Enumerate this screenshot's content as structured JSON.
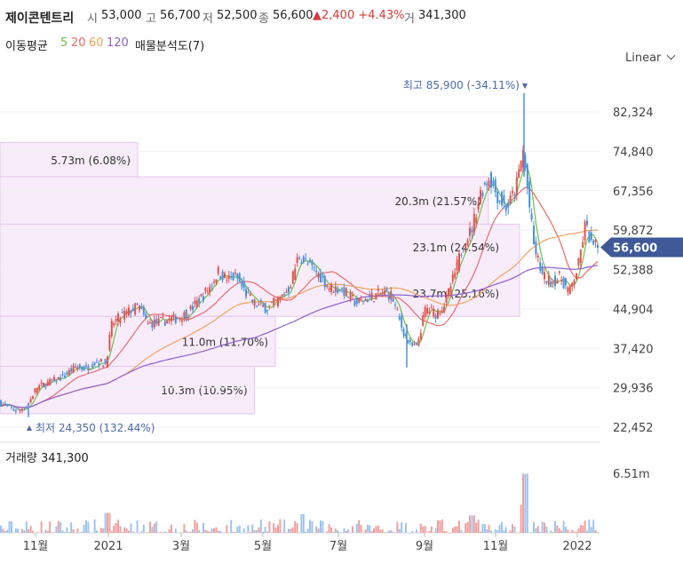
{
  "header": {
    "name": "제이콘텐트리",
    "open_label": "시",
    "open": "53,000",
    "high_label": "고",
    "high": "56,700",
    "low_label": "저",
    "low": "52,500",
    "close_label": "종",
    "close": "56,600",
    "change": "▲2,400 +4.43%",
    "volume_label": "거",
    "volume": "341,300"
  },
  "ma_legend": {
    "title": "이동평균",
    "p5": "5",
    "p20": "20",
    "p60": "60",
    "p120": "120",
    "vp": "매물분석도(7)"
  },
  "scale_select": {
    "label": "Linear"
  },
  "colors": {
    "up": "#e0534f",
    "down": "#4a90d9",
    "ma5": "#6cc04a",
    "ma20": "#e86b6b",
    "ma60": "#f0a35e",
    "ma120": "#8e5fd0",
    "vp": "#f3dcf8",
    "price_tag": "#3f5999"
  },
  "chart_data": {
    "type": "candlestick",
    "yticks": [
      "82,324",
      "74,840",
      "67,356",
      "59,872",
      "52,388",
      "44,904",
      "37,420",
      "29,936",
      "22,452"
    ],
    "ylim": [
      22452,
      86000
    ],
    "xticks": [
      "11월",
      "2021",
      "3월",
      "5월",
      "7월",
      "9월",
      "11월",
      "2022"
    ],
    "current_price": "56,600",
    "max_annotation": "최고 85,900 (-34.11%)",
    "min_annotation": "최저 24,350 (132.44%)",
    "volume_title": "거래량 341,300",
    "volume_tick": "6.51m",
    "volume_profile": [
      {
        "price_from": 70000,
        "price_to": 76500,
        "label": "5.73m (6.08%)",
        "fraction": 0.265
      },
      {
        "price_from": 61000,
        "price_to": 70000,
        "label": "20.3m (21.57%)",
        "fraction": 0.94
      },
      {
        "price_from": 52388,
        "price_to": 61000,
        "label": "23.1m (24.54%)",
        "fraction": 1.0
      },
      {
        "price_from": 43500,
        "price_to": 52388,
        "label": "23.7m (25.16%)",
        "fraction": 1.0
      },
      {
        "price_from": 34000,
        "price_to": 43500,
        "label": "11.0m (11.70%)",
        "fraction": 0.53
      },
      {
        "price_from": 25000,
        "price_to": 34000,
        "label": "10.3m (10.95%)",
        "fraction": 0.49
      }
    ],
    "price_anchors": [
      [
        0,
        27000
      ],
      [
        18,
        25500
      ],
      [
        30,
        26500
      ],
      [
        40,
        30000
      ],
      [
        55,
        31000
      ],
      [
        70,
        32000
      ],
      [
        85,
        34000
      ],
      [
        95,
        33500
      ],
      [
        108,
        35000
      ],
      [
        118,
        34500
      ],
      [
        125,
        42000
      ],
      [
        135,
        43500
      ],
      [
        145,
        44500
      ],
      [
        155,
        45500
      ],
      [
        165,
        42000
      ],
      [
        180,
        42500
      ],
      [
        195,
        43000
      ],
      [
        210,
        44000
      ],
      [
        225,
        47000
      ],
      [
        235,
        49000
      ],
      [
        245,
        52000
      ],
      [
        255,
        50500
      ],
      [
        265,
        51000
      ],
      [
        275,
        48000
      ],
      [
        285,
        46000
      ],
      [
        300,
        45000
      ],
      [
        315,
        47000
      ],
      [
        325,
        49000
      ],
      [
        335,
        55000
      ],
      [
        345,
        53500
      ],
      [
        355,
        52000
      ],
      [
        370,
        49000
      ],
      [
        385,
        48500
      ],
      [
        400,
        46000
      ],
      [
        415,
        47000
      ],
      [
        430,
        48000
      ],
      [
        440,
        47500
      ],
      [
        450,
        42000
      ],
      [
        460,
        38000
      ],
      [
        468,
        37500
      ],
      [
        478,
        45000
      ],
      [
        490,
        44000
      ],
      [
        500,
        46000
      ],
      [
        510,
        51000
      ],
      [
        520,
        57000
      ],
      [
        530,
        60000
      ],
      [
        540,
        67000
      ],
      [
        550,
        70000
      ],
      [
        560,
        66000
      ],
      [
        570,
        64000
      ],
      [
        580,
        68000
      ],
      [
        588,
        75000
      ],
      [
        590,
        72000
      ],
      [
        600,
        57000
      ],
      [
        610,
        51000
      ],
      [
        620,
        50000
      ],
      [
        630,
        51000
      ],
      [
        640,
        48000
      ],
      [
        650,
        53000
      ],
      [
        658,
        61000
      ],
      [
        665,
        57000
      ],
      [
        672,
        56600
      ]
    ]
  }
}
